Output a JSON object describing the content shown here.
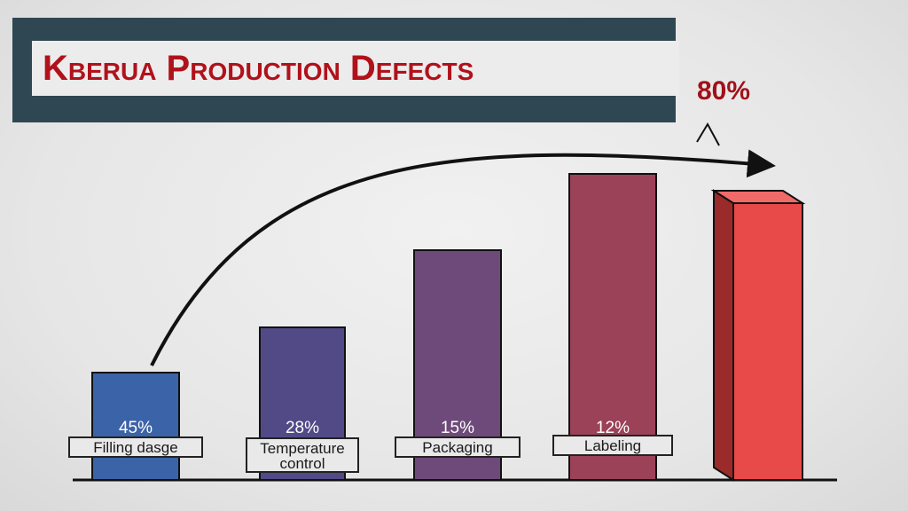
{
  "chart_data": {
    "type": "bar",
    "title": "Kberua Production Defects",
    "categories": [
      "Filling dasge",
      "Temperature control",
      "Packaging",
      "Labeling",
      ""
    ],
    "values": [
      45,
      28,
      15,
      12,
      80
    ],
    "value_labels": [
      "45%",
      "28%",
      "15%",
      "12%",
      ""
    ],
    "annotation": "80%",
    "ylim": [
      0,
      100
    ],
    "grid": false,
    "legend": "none",
    "colors": [
      "#3b63a8",
      "#514a86",
      "#6e4a7a",
      "#9b4258",
      "#e84a4a"
    ],
    "arrow": {
      "from_category_index": 0,
      "to_category_index": 4
    }
  }
}
